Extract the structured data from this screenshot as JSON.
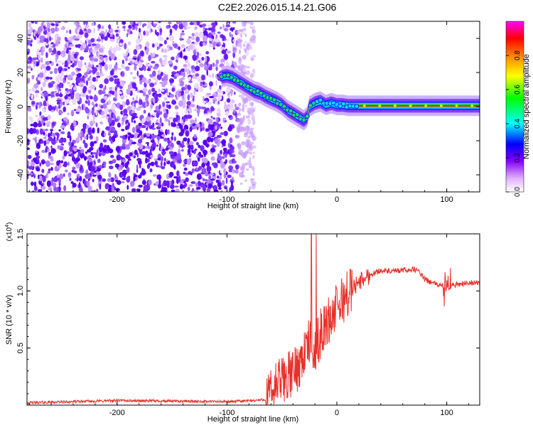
{
  "figure_title": "C2E2.2026.015.14.21.G06",
  "chart_data": [
    {
      "type": "heatmap",
      "xlabel": "Height of straight line (km)",
      "ylabel": "Frequency (Hz)",
      "xlim": [
        -282,
        130
      ],
      "ylim": [
        -50,
        50
      ],
      "x_ticks": [
        -200,
        -100,
        0,
        100
      ],
      "x_tick_labels": [
        "-200",
        "-100",
        "0",
        "100"
      ],
      "y_ticks": [
        -40,
        -20,
        0,
        20,
        40
      ],
      "y_tick_labels": [
        "-40",
        "-20",
        "0",
        "20",
        "40"
      ],
      "noise_region": {
        "x_start": -282,
        "x_end": -75,
        "freq_range": [
          -50,
          50
        ]
      },
      "ridge": {
        "x": [
          -105,
          -100,
          -95,
          -90,
          -85,
          -80,
          -75,
          -70,
          -65,
          -60,
          -55,
          -50,
          -45,
          -40,
          -35,
          -30,
          -27,
          -25,
          -20,
          -15,
          -10,
          -5,
          0,
          5,
          10,
          20,
          40,
          60,
          80,
          100,
          130
        ],
        "freq": [
          17.5,
          18,
          17,
          15,
          13,
          11,
          9,
          8,
          6,
          4.5,
          3,
          1,
          -2,
          -4,
          -6,
          -8,
          -6,
          0,
          2,
          3,
          1,
          2,
          1,
          1,
          0.5,
          0.5,
          0.5,
          0.5,
          0.5,
          0.5,
          0.5
        ]
      },
      "colorbar": {
        "label": "Normalized spectral amplitude",
        "range": [
          0,
          1
        ],
        "ticks": [
          "0.0",
          "0.2",
          "0.4",
          "0.6",
          "0.8"
        ],
        "tick_values": [
          0,
          0.2,
          0.4,
          0.6,
          0.8
        ],
        "colors": [
          "#ffffff",
          "#e0b0ff",
          "#8800ff",
          "#0000ff",
          "#00ffff",
          "#00ff00",
          "#ffff00",
          "#ff8000",
          "#ff0000",
          "#ff00ff"
        ]
      }
    },
    {
      "type": "line",
      "xlabel": "Height of straight line (km)",
      "ylabel": "SNR (10 * v/v)",
      "scale_label": "(x10",
      "scale_exponent": "4",
      "scale_suffix": ")",
      "xlim": [
        -282,
        130
      ],
      "ylim": [
        0,
        1.5
      ],
      "x_ticks": [
        -200,
        -100,
        0,
        100
      ],
      "x_tick_labels": [
        "-200",
        "-100",
        "0",
        "100"
      ],
      "y_ticks": [
        0.5,
        1.0,
        1.5
      ],
      "y_tick_labels": [
        "0.5",
        "1.0",
        "1.5"
      ],
      "series": [
        {
          "color": "#e8302a",
          "x": [
            -282,
            -200,
            -100,
            -75,
            -65,
            -60,
            -55,
            -50,
            -45,
            -40,
            -35,
            -30,
            -25,
            -22,
            -20,
            -18,
            -15,
            -10,
            -5,
            0,
            10,
            20,
            30,
            40,
            50,
            60,
            70,
            75,
            80,
            90,
            95,
            98,
            100,
            102,
            105,
            110,
            120,
            130
          ],
          "y": [
            0.02,
            0.04,
            0.03,
            0.04,
            0.05,
            0.1,
            0.18,
            0.22,
            0.25,
            0.28,
            0.35,
            0.45,
            0.55,
            0.5,
            0.48,
            0.55,
            0.62,
            0.7,
            0.78,
            0.85,
            0.98,
            1.08,
            1.14,
            1.18,
            1.17,
            1.18,
            1.19,
            1.17,
            1.1,
            1.06,
            1.05,
            1.03,
            1.02,
            1.03,
            1.05,
            1.06,
            1.07,
            1.07
          ]
        }
      ]
    }
  ]
}
